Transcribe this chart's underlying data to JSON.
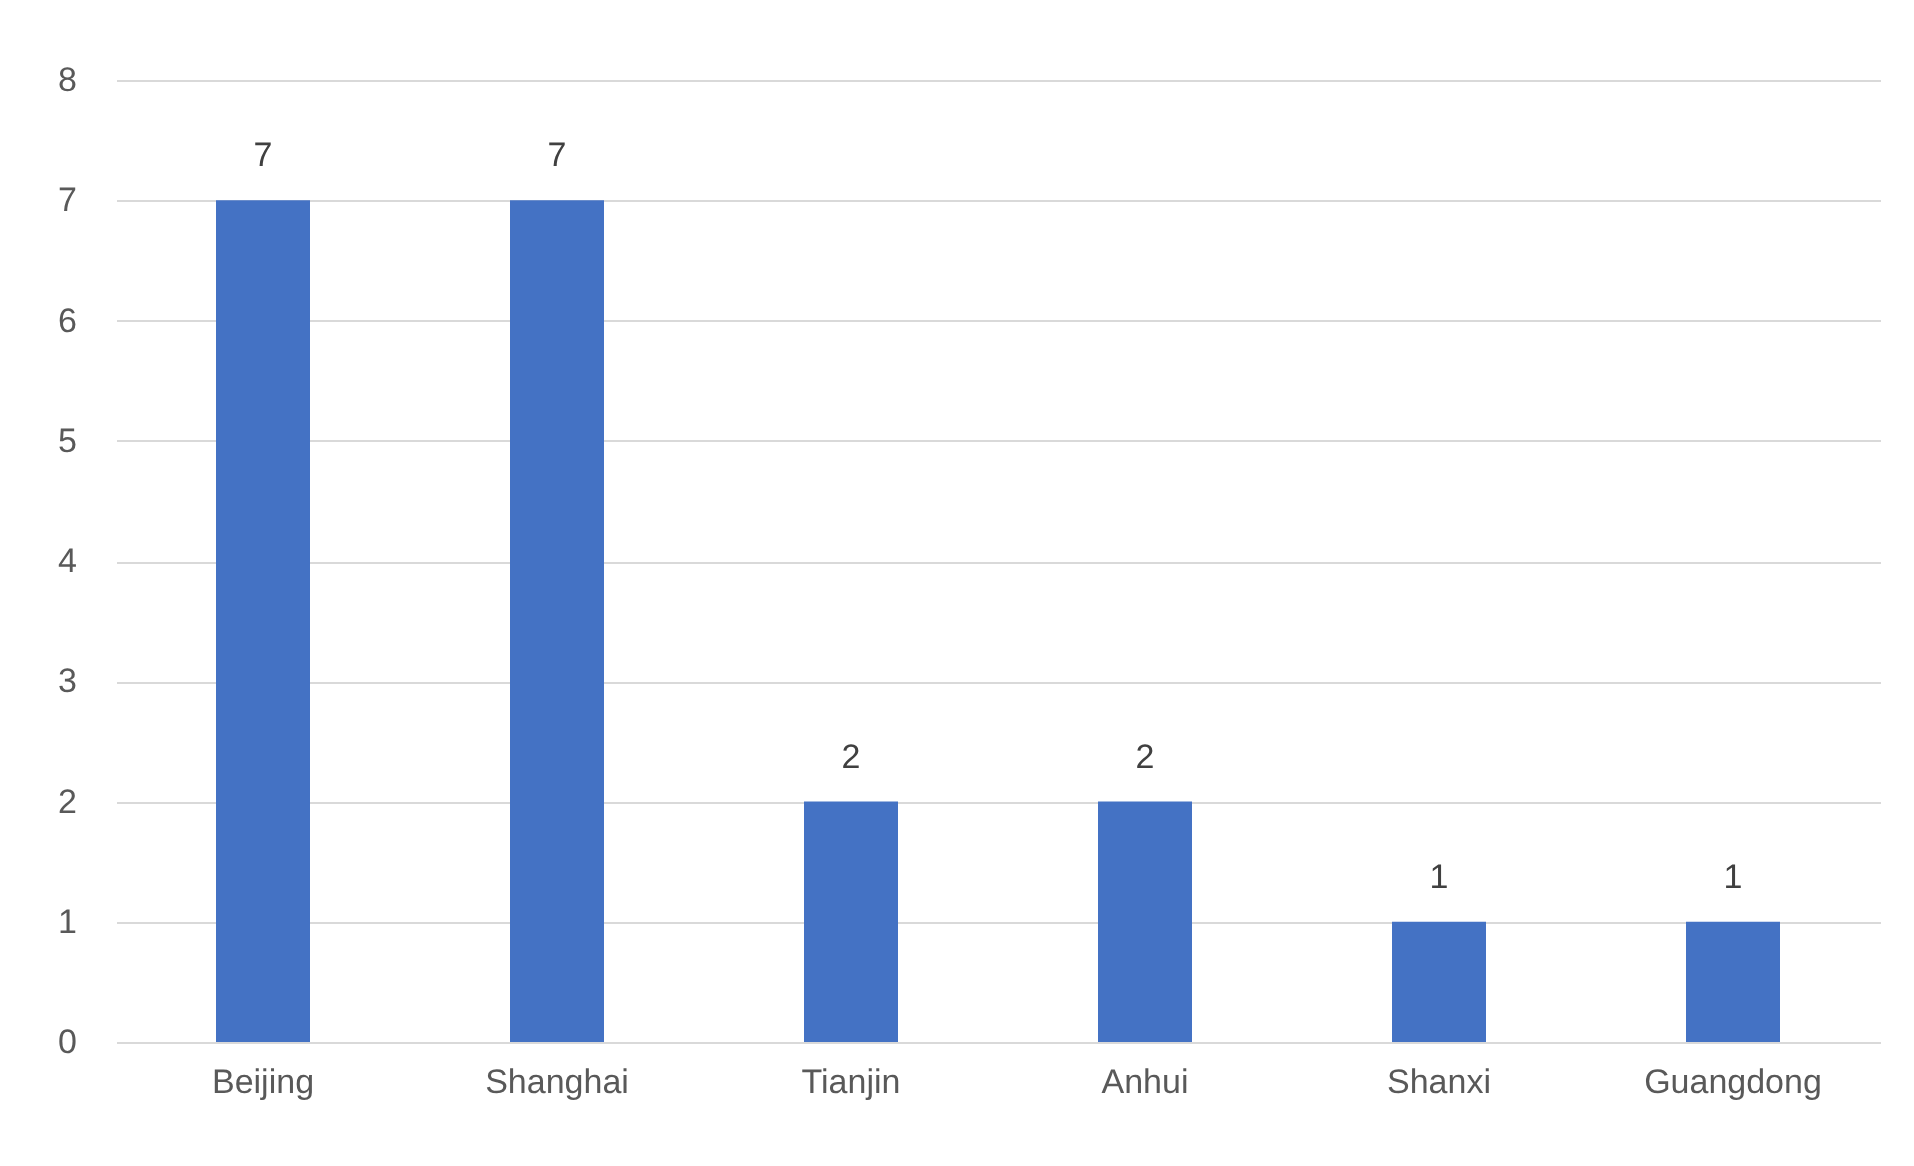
{
  "chart_data": {
    "type": "bar",
    "categories": [
      "Beijing",
      "Shanghai",
      "Tianjin",
      "Anhui",
      "Shanxi",
      "Guangdong"
    ],
    "values": [
      7,
      7,
      2,
      2,
      1,
      1
    ],
    "color": "#4472c4",
    "ylim": [
      0,
      8
    ],
    "yticks": [
      0,
      1,
      2,
      3,
      4,
      5,
      6,
      7,
      8
    ],
    "grid": "y",
    "data_labels": true
  }
}
